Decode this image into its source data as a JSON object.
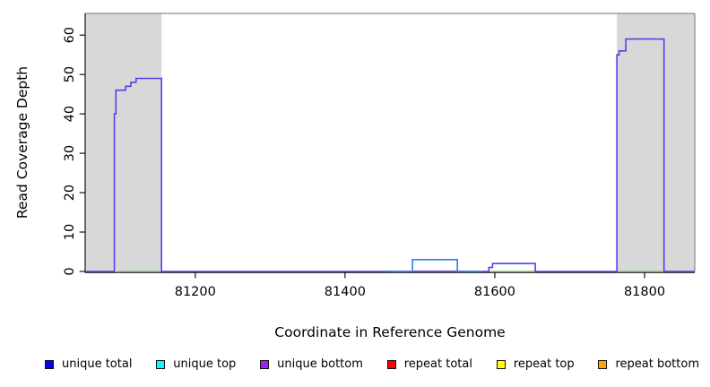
{
  "chart_data": {
    "type": "line",
    "subtype": "step-coverage",
    "title": "",
    "xlabel": "Coordinate in Reference Genome",
    "ylabel": "Read Coverage Depth",
    "xlim": [
      81053,
      81867
    ],
    "ylim": [
      0,
      65.5
    ],
    "xticks": [
      81200,
      81400,
      81600,
      81800
    ],
    "yticks": [
      0,
      10,
      20,
      30,
      40,
      50,
      60
    ],
    "grid": false,
    "legend_position": "bottom",
    "shaded_regions": [
      {
        "name": "gray-masked-region-left",
        "x0": 81053,
        "x1": 81155,
        "color": "#d8d8d8"
      },
      {
        "name": "gray-masked-region-right",
        "x0": 81763,
        "x1": 81867,
        "color": "#d8d8d8"
      }
    ],
    "series": [
      {
        "name": "repeat-total-zero-line",
        "color": "#e85d6a",
        "width": 1.4,
        "segments": [
          [
            81490,
            81550,
            0
          ]
        ]
      },
      {
        "name": "green-zero-line",
        "color": "#82c882",
        "width": 1.4,
        "segments": [
          [
            81096,
            81155,
            0
          ],
          [
            81592,
            81654,
            0
          ],
          [
            81764,
            81826,
            0
          ]
        ]
      },
      {
        "name": "unique-bottom-coverage",
        "color": "#5b3de8",
        "width": 1.6,
        "segments": [
          [
            81053,
            81092,
            0
          ],
          [
            81092,
            81094,
            40
          ],
          [
            81094,
            81107,
            46
          ],
          [
            81107,
            81114,
            47
          ],
          [
            81114,
            81121,
            48
          ],
          [
            81121,
            81155,
            49
          ],
          [
            81155,
            81592,
            0
          ],
          [
            81592,
            81597,
            1
          ],
          [
            81597,
            81654,
            2
          ],
          [
            81654,
            81763,
            0
          ],
          [
            81763,
            81766,
            55
          ],
          [
            81766,
            81775,
            56
          ],
          [
            81775,
            81826,
            59
          ],
          [
            81826,
            81867,
            0
          ]
        ]
      },
      {
        "name": "unique-total-peak",
        "color": "#2f7fe8",
        "width": 1.6,
        "segments": [
          [
            81455,
            81490,
            0
          ],
          [
            81490,
            81550,
            3
          ],
          [
            81550,
            81584,
            0
          ]
        ]
      }
    ],
    "frame": {
      "top_right_color": "#8c8c8c",
      "axis_color": "#000000"
    }
  },
  "legend": {
    "items": [
      {
        "label": "unique total",
        "color": "#0000ff"
      },
      {
        "label": "unique top",
        "color": "#00ffff"
      },
      {
        "label": "unique bottom",
        "color": "#a020f0"
      },
      {
        "label": "repeat total",
        "color": "#ff0000"
      },
      {
        "label": "repeat top",
        "color": "#ffff00"
      },
      {
        "label": "repeat bottom",
        "color": "#ffa500"
      }
    ]
  }
}
